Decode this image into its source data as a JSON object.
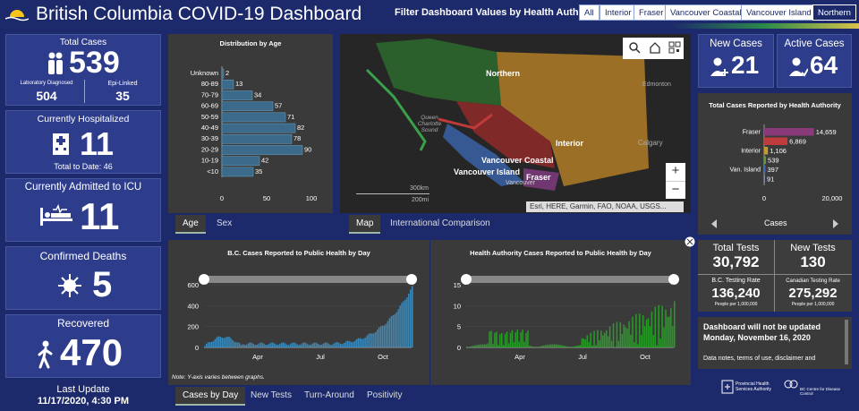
{
  "header": {
    "title": "British Columbia COVID-19 Dashboard",
    "filter_label": "Filter Dashboard Values by Health Authority:",
    "filters": [
      "All",
      "Interior",
      "Fraser",
      "Vancouver Coastal",
      "Vancouver Island",
      "Northern"
    ],
    "active_filter": "Northern"
  },
  "total_cases": {
    "label": "Total Cases",
    "value": "539",
    "lab_label": "Laboratory Diagnosed",
    "lab_value": "504",
    "epi_label": "Epi-Linked",
    "epi_value": "35"
  },
  "hospitalized": {
    "label": "Currently Hospitalized",
    "value": "11",
    "total_label": "Total to Date: 46"
  },
  "icu": {
    "label": "Currently Admitted to ICU",
    "value": "11"
  },
  "deaths": {
    "label": "Confirmed Deaths",
    "value": "5"
  },
  "recovered": {
    "label": "Recovered",
    "value": "470"
  },
  "last_update": {
    "label": "Last Update",
    "value": "11/17/2020, 4:30 PM"
  },
  "age_chart": {
    "tabs": [
      "Age",
      "Sex"
    ],
    "chart_data": {
      "type": "bar",
      "title": "Distribution by Age",
      "categories": [
        "Unknown",
        "80-89",
        "70-79",
        "60-69",
        "50-59",
        "40-49",
        "30-39",
        "20-29",
        "10-19",
        "<10"
      ],
      "values": [
        2,
        13,
        34,
        57,
        71,
        82,
        78,
        90,
        42,
        35
      ],
      "xlim": [
        0,
        100
      ],
      "xticks": [
        "0",
        "50",
        "100"
      ]
    }
  },
  "map": {
    "tabs": [
      "Map",
      "International Comparison"
    ],
    "labels": {
      "northern": "Northern",
      "interior": "Interior",
      "vc": "Vancouver Coastal",
      "vi": "Vancouver Island",
      "fraser": "Fraser",
      "edmonton": "Edmonton",
      "calgary": "Calgary",
      "qc": "Queen Charlotte Sound",
      "vancouver": "Vancouver"
    },
    "scale_km": "300km",
    "scale_mi": "200mi",
    "attribution": "Esri, HERE, Garmin, FAO, NOAA, USGS...",
    "zoom_in": "+",
    "zoom_out": "−"
  },
  "new_cases": {
    "label": "New Cases",
    "value": "21"
  },
  "active_cases": {
    "label": "Active Cases",
    "value": "64"
  },
  "ha_chart": {
    "xlabel": "Cases",
    "chart_data": {
      "type": "bar",
      "title": "Total Cases Reported by Health Authority",
      "categories": [
        "Fraser",
        "",
        "Interior",
        "",
        "Van. Island",
        ""
      ],
      "values": [
        14659,
        6869,
        1106,
        539,
        397,
        91
      ],
      "value_labels": [
        "14,659",
        "6,869",
        "1,106",
        "539",
        "397",
        "91"
      ],
      "colors": [
        "#8a3a7a",
        "#c03c3c",
        "#c59a2e",
        "#5a9a3a",
        "#3a6ab0",
        "#7a8aa0"
      ],
      "xlim": [
        0,
        20000
      ],
      "xticks": [
        "0",
        "20,000"
      ]
    }
  },
  "bc_daily": {
    "chart_data": {
      "type": "area",
      "title": "B.C. Cases Reported to Public Health by Day",
      "x_ticks": [
        "Apr",
        "Jul",
        "Oct"
      ],
      "ylim": [
        0,
        600
      ],
      "yticks": [
        "0",
        "200",
        "400",
        "600"
      ],
      "note": "Note: Y-axis varies between graphs."
    }
  },
  "ha_daily": {
    "chart_data": {
      "type": "bar",
      "title": "Health Authority Cases Reported to Public Health by Day",
      "x_ticks": [
        "Apr",
        "Jul",
        "Oct"
      ],
      "ylim": [
        0,
        15
      ],
      "yticks": [
        "0",
        "5",
        "10",
        "15"
      ]
    }
  },
  "bottom_tabs": [
    "Cases by Day",
    "New Tests",
    "Turn-Around",
    "Positivity"
  ],
  "tests": {
    "total_label": "Total Tests",
    "total_value": "30,792",
    "new_label": "New Tests",
    "new_value": "130",
    "bc_rate_label": "B.C. Testing Rate",
    "bc_rate_value": "136,240",
    "bc_rate_unit": "People per 1,000,000",
    "ca_rate_label": "Canadian Testing Rate",
    "ca_rate_value": "275,292",
    "ca_rate_unit": "People per 1,000,000"
  },
  "notice": {
    "title": "Dashboard will not be updated Monday, November 16, 2020",
    "body": "Data notes, terms of use, disclaimer and"
  },
  "footer": {
    "pha": "Provincial Health Services Authority",
    "bccdc": "BC Centre for Disease Control"
  }
}
